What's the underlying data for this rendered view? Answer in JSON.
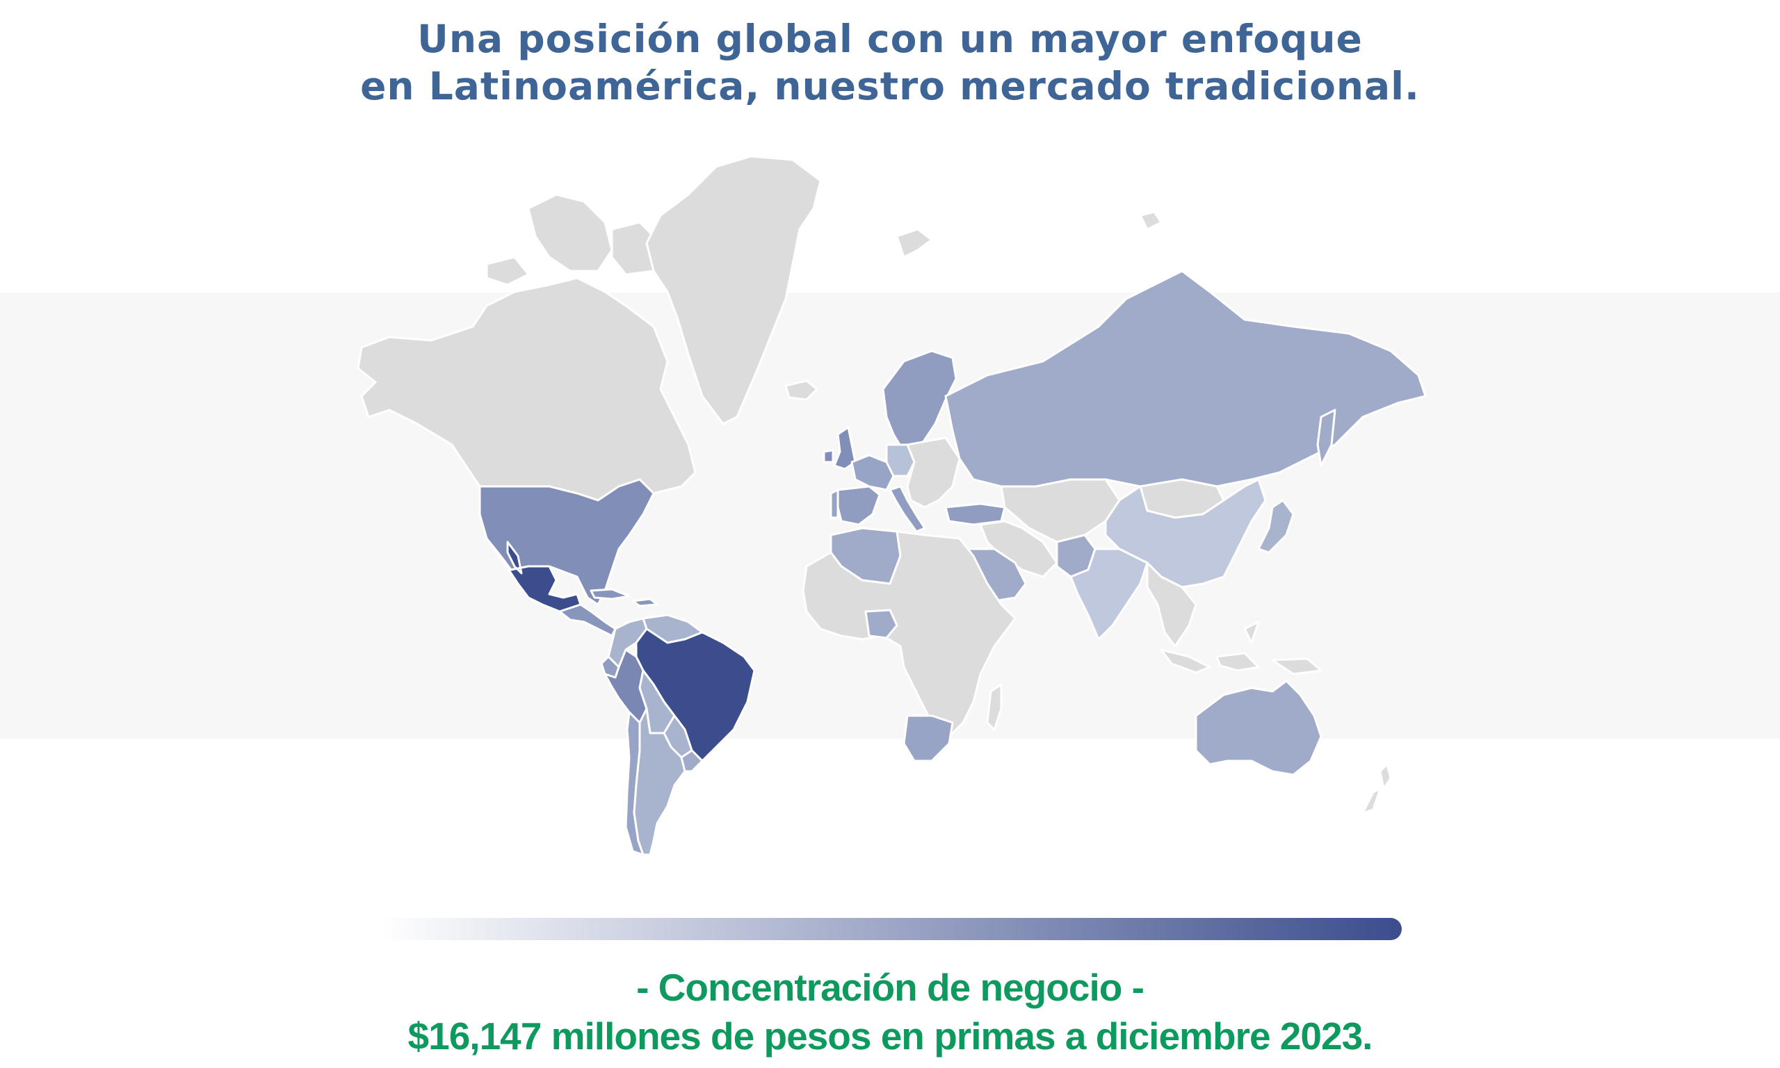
{
  "title": {
    "line1": "Una posición global con un mayor enfoque",
    "line2": "en Latinoamérica, nuestro mercado tradicional."
  },
  "caption": {
    "line1": "- Concentración de negocio -",
    "line2": "$16,147 millones de pesos en primas a diciembre 2023."
  },
  "colors": {
    "title": "#3e6596",
    "caption": "#0e9a5f",
    "no_data": "#dcdcdc",
    "scale_low": "#ffffff",
    "scale_high": "#3b4d8d"
  },
  "regions": [
    {
      "name": "Canada",
      "level": 0
    },
    {
      "name": "Greenland",
      "level": 0
    },
    {
      "name": "United States",
      "level": 0.55
    },
    {
      "name": "Mexico",
      "level": 1.0
    },
    {
      "name": "Central America",
      "level": 0.5
    },
    {
      "name": "Colombia",
      "level": 0.3
    },
    {
      "name": "Venezuela",
      "level": 0.3
    },
    {
      "name": "Ecuador",
      "level": 0.45
    },
    {
      "name": "Peru",
      "level": 0.6
    },
    {
      "name": "Brazil",
      "level": 1.0
    },
    {
      "name": "Bolivia",
      "level": 0.3
    },
    {
      "name": "Paraguay",
      "level": 0.3
    },
    {
      "name": "Chile",
      "level": 0.4
    },
    {
      "name": "Argentina",
      "level": 0.3
    },
    {
      "name": "Uruguay",
      "level": 0.35
    },
    {
      "name": "United Kingdom",
      "level": 0.55
    },
    {
      "name": "Spain",
      "level": 0.45
    },
    {
      "name": "Portugal",
      "level": 0.4
    },
    {
      "name": "France",
      "level": 0.4
    },
    {
      "name": "Italy",
      "level": 0.45
    },
    {
      "name": "Scandinavia",
      "level": 0.45
    },
    {
      "name": "Germany",
      "level": 0.2
    },
    {
      "name": "Russia",
      "level": 0.35
    },
    {
      "name": "Turkey",
      "level": 0.45
    },
    {
      "name": "Morocco-Algeria",
      "level": 0.35
    },
    {
      "name": "Saudi Arabia",
      "level": 0.35
    },
    {
      "name": "Nigeria",
      "level": 0.35
    },
    {
      "name": "South Africa",
      "level": 0.4
    },
    {
      "name": "Pakistan",
      "level": 0.35
    },
    {
      "name": "India",
      "level": 0.15
    },
    {
      "name": "China",
      "level": 0.15
    },
    {
      "name": "Japan",
      "level": 0.3
    },
    {
      "name": "Australia",
      "level": 0.35
    },
    {
      "name": "Africa",
      "level": 0
    },
    {
      "name": "Middle East",
      "level": 0
    },
    {
      "name": "Central Asia",
      "level": 0
    },
    {
      "name": "Mongolia",
      "level": 0
    },
    {
      "name": "Southeast Asia",
      "level": 0
    },
    {
      "name": "Indonesia",
      "level": 0
    },
    {
      "name": "New Zealand",
      "level": 0
    },
    {
      "name": "Madagascar",
      "level": 0
    },
    {
      "name": "Iceland",
      "level": 0
    },
    {
      "name": "Svalbard",
      "level": 0
    },
    {
      "name": "Eastern Europe",
      "level": 0
    }
  ]
}
